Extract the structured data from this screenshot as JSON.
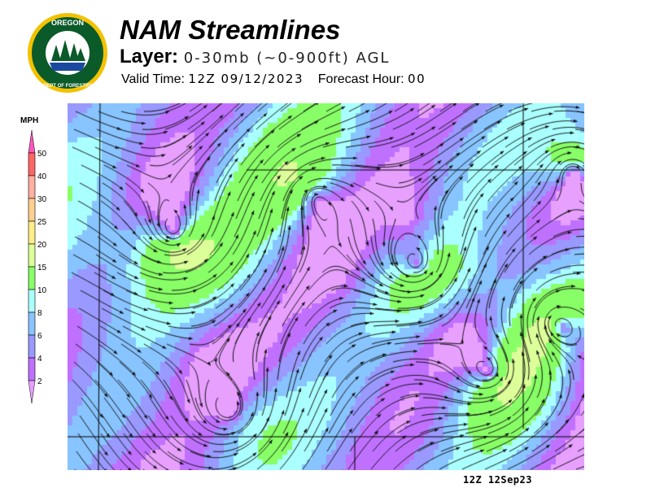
{
  "logo": {
    "text_top": "OREGON",
    "text_bottom": "DEPARTMENT OF FORESTRY"
  },
  "header": {
    "title": "NAM Streamlines",
    "layer_label": "Layer:",
    "layer_value": "0-30mb (~0-900ft) AGL",
    "valid_label": "Valid Time:",
    "valid_value": "12Z 09/12/2023",
    "forecast_label": "Forecast Hour:",
    "forecast_value": "00"
  },
  "legend": {
    "units": "MPH",
    "ticks": [
      "50",
      "40",
      "30",
      "25",
      "20",
      "15",
      "10",
      "8",
      "6",
      "4",
      "2"
    ],
    "colors": [
      "#ff55bb",
      "#ff6666",
      "#ffb0a0",
      "#ffd090",
      "#ffee88",
      "#ddff99",
      "#88ff66",
      "#aaffff",
      "#88c4ff",
      "#9999ff",
      "#c070ff",
      "#e8a0ff"
    ]
  },
  "footer": {
    "stamp": "12Z 12Sep23"
  }
}
